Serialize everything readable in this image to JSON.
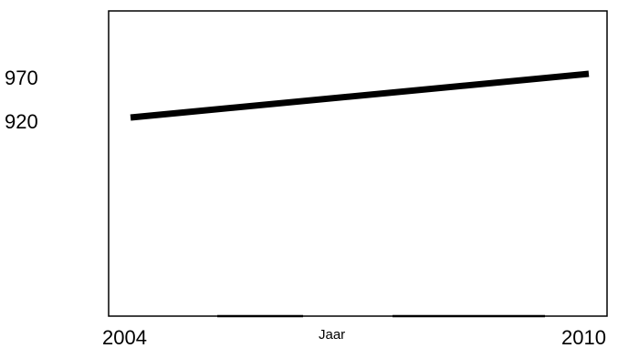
{
  "chart_data": {
    "type": "line",
    "x": [
      2004,
      2010
    ],
    "series": [
      {
        "values": [
          920,
          970
        ]
      }
    ],
    "xlabel": "Jaar",
    "ylabel": "",
    "x_tick_labels": [
      "2004",
      "2010"
    ],
    "y_tick_labels": [
      "970",
      "920"
    ],
    "xlim": [
      2004,
      2010
    ],
    "grid": false,
    "line_color": "#000000",
    "axis_color": "#000000"
  }
}
